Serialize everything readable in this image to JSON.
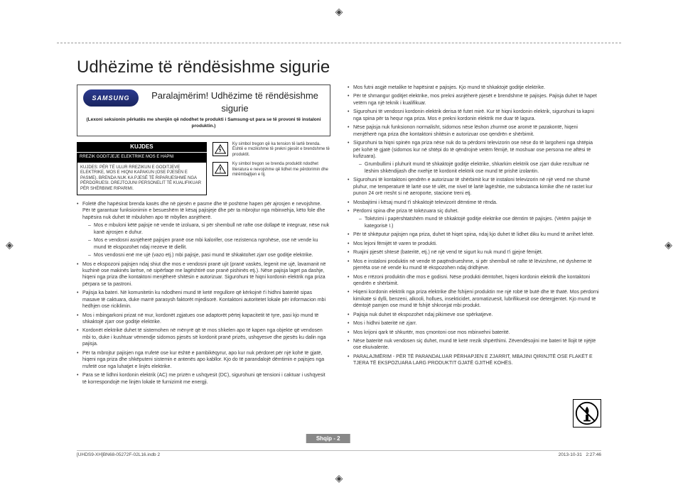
{
  "registration_mark": "◈",
  "title": "Udhëzime të rëndësishme sigurie",
  "logo_text": "SAMSUNG",
  "subhead": {
    "title": "Paralajmërim! Udhëzime të rëndësishme sigurie",
    "note": "(Lexoni seksionin përkatës me shenjën që ndodhet te produkti i Samsung-ut para se të provoni të instaloni produktin.)"
  },
  "caution": {
    "header": "KUJDES",
    "bar": "RREZIK GODITJEJE ELEKTRIKE MOS E HAPNI",
    "body": "KUJDES: PËR TË ULUR RREZIKUN E GODITJEVE ELEKTRIKE, MOS E HIQNI KAPAKUN (OSE PJESËN E PASME). BRENDA NUK KA PJESË TË RIPARUESHME NGA PËRDORUESI. DREJTOJUNI PERSONELIT TË KUALIFIKUAR PËR SHËRBIME RIPARIMI."
  },
  "symbols": [
    "Ky simbol tregon që ka tension të lartë brenda. Është e rrezikshme të prekni pjesët e brendshme të produktit.",
    "Ky simbol tregon se brenda produktit ndodhet literatura e nevojshme që lidhet me përdorimin dhe mirëmbajtjen e tij."
  ],
  "left_bullets": [
    {
      "text": "Foletë dhe hapësirat brenda kasës dhe në pjesën e pasme dhe të poshtme hapen për ajrosjen e nevojshme. Për të garantuar funksionimin e besueshëm të kësaj pajisjeje dhe për ta mbrojtur nga mbinxehja, këto fole dhe hapësira nuk duhet të mbulohen apo të mbyllen asnjëherë.",
      "sub": [
        "Mos e mbuloni këtë pajisje në vende të izoluara, si për shembull në rafte ose dollapë të integruar, nëse nuk kanë ajrosjen e duhur.",
        "Mos e vendosni asnjëherë pajisjen pranë ose mbi kalorifer, ose rezistenca ngrohëse, ose në vende ku mund të ekspozohet ndaj rrezeve të diellit.",
        "Mos vendosni enë me ujë (vazo etj.) mbi pajisje, pasi mund të shkaktohet zjarr ose goditje elektrike."
      ]
    },
    {
      "text": "Mos e ekspozoni pajisjen ndaj shiut dhe mos e vendosni pranë ujit (pranë vaskës, legenit me ujë, lavamanit në kuzhinë ose makinës larëse, në sipërfaqe me lagështirë ose pranë pishinës etj.). Nëse pajisja laget pa dashje, hiqeni nga priza dhe kontaktoni menjëherë shitësin e autorizuar. Sigurohuni të hiqni kordonin elektrik nga priza përpara se ta pastroni."
    },
    {
      "text": "Pajisja ka bateri. Në komunitetin ku ndodheni mund të ketë rregullore që kërkojnë t'i hidhni bateritë sipas masave të caktuara, duke marrë parasysh faktorët mjedisorë. Kontaktoni autoritetet lokale për informacion mbi hedhjen ose riciklimin."
    },
    {
      "text": "Mos i mbingarkoni prizat në mur, kordonët zgjatues ose adaptorët përtej kapacitetit të tyre, pasi kjo mund të shkaktojë zjarr ose goditje elektrike."
    },
    {
      "text": "Kordonët elektrikë duhet të sistemohen në mënyrë që të mos shkelen apo të kapen nga objekte që vendosen mbi to, duke i kushtuar vëmendje sidomos pjesës së kordonit pranë prizës, ushqyesve dhe pjesës ku dalin nga pajisja."
    },
    {
      "text": "Për ta mbrojtur pajisjen nga rrufetë ose kur është e pambikëqyrur, apo kur nuk përdoret për një kohë të gjatë, hiqeni nga priza dhe shkëputeni sistemin e antenës apo kabllor. Kjo do të parandalojë dëmtimin e pajisjes nga rrufetë ose nga luhatjet e linjës elektrike."
    },
    {
      "text": "Para se të lidhni kordonin elektrik (AC) me prizën e ushqyesit (DC), sigurohuni që tensioni i caktuar i ushqyesit të korrespondojë me linjën lokale të furnizimit me energji."
    }
  ],
  "right_bullets": [
    {
      "text": "Mos futni asgjë metalike te hapësirat e pajisjes. Kjo mund të shkaktojë goditje elektrike."
    },
    {
      "text": "Për të shmangur goditjet elektrike, mos prekni asnjëherë pjesët e brendshme të pajisjes. Pajisja duhet të hapet vetëm nga një teknik i kualifikuar."
    },
    {
      "text": "Sigurohuni të vendosni kordonin elektrik derisa të futet mirë. Kur të hiqni kordonin elektrik, sigurohuni ta kapni nga spina për ta hequr nga priza. Mos e prekni kordonin elektrik me duar të lagura."
    },
    {
      "text": "Nëse pajisja nuk funksionon normalisht, sidomos nëse lëshon zhurmë ose aromë të pazakontë, hiqeni menjëherë nga priza dhe kontaktoni shitësin e autorizuar ose qendrën e shërbimit."
    },
    {
      "text": "Sigurohuni ta hiqni spinën nga priza nëse nuk do ta përdorni televizorin ose nëse do të largoheni nga shtëpia për kohë të gjatë (sidomos kur në shtëpi do të qëndrojnë vetëm fëmijë, të moshuar ose persona me aftësi të kufizuara).",
      "sub": [
        "Grumbullimi i pluhurit mund të shkaktojë goditje elektrike, shkarkim elektrik ose zjarr duke rezultuar në lëshim shkëndijash dhe nxehje të kordonit elektrik ose mund të prishë izolantin."
      ]
    },
    {
      "text": "Sigurohuni të kontaktoni qendrën e autorizuar të shërbimit kur të instaloni televizorin në një vend me shumë pluhur, me temperaturë të lartë ose të ulët, me nivel të lartë lagështie, me substanca kimike dhe në rastet kur punon 24 orë rresht si në aeroporte, stacione treni etj."
    },
    {
      "text": "Mosbajtimi i kësaj mund t'i shkaktojë televizorit dëmtime të rënda."
    },
    {
      "text": "Përdorni spina dhe priza të tokëzuara siç duhet.",
      "sub": [
        "Tokëzimi i papërshtatshëm mund të shkaktojë goditje elektrike ose dëmtim të pajisjes. (Vetëm pajisje të kategorisë I.)"
      ]
    },
    {
      "text": "Për të shkëputur pajisjen nga priza, duhet të hiqet spina, ndaj kjo duhet të lidhet diku ku mund të arrihet lehtë."
    },
    {
      "text": "Mos lejoni fëmijët të varen te produkti."
    },
    {
      "text": "Ruajini pjesët shtesë (bateritë, etj.) në një vend të sigurt ku nuk mund t'i gjejnë fëmijët."
    },
    {
      "text": "Mos e instaloni produktin në vende të paqëndrueshme, si për shembull në rafte të lëvizshme, në dysheme të pjerrëta ose në vende ku mund të ekspozohen ndaj dridhjeve."
    },
    {
      "text": "Mos e rrëzoni produktin dhe mos e godisni. Nëse produkti dëmtohet, hiqeni kordonin elektrik dhe kontaktoni qendrën e shërbimit."
    },
    {
      "text": "Hiqeni kordonin elektrik nga priza elektrike dhe fshijeni produktin me një robë të butë dhe të thatë. Mos përdorni kimikate si dylli, benzeni, alkooli, hollues, insekticidet, aromatizuesit, lubrifikuesit ose detergjentet. Kjo mund të dëmtojë pamjen ose mund të fshijë shkronjat mbi produkt."
    },
    {
      "text": "Pajisja nuk duhet të ekspozohet ndaj pikimeve ose spërkatjeve."
    },
    {
      "text": "Mos i hidhni bateritë në zjarr."
    },
    {
      "text": "Mos krijoni qark të shkurtër, mos çmontoni ose mos mbinxehni bateritë."
    },
    {
      "text": "Nëse bateritë nuk vendosen siç duhet, mund të ketë rrezik shpërthimi. Zëvendësojini me bateri të llojit të njëjtë ose ekuivalente."
    },
    {
      "text": "PARALAJMËRIM - PËR TË PARANDALUAR PËRHAPJEN E ZJARRIT, MBAJINI QIRINJTË OSE FLAKËT E TJERA TË EKSPOZUARA LARG PRODUKTIT GJATË GJITHË KOHËS."
    }
  ],
  "page_label": "Shqip - 2",
  "footer": {
    "left": "[UHDS9-XH]BN68-05272F-02L16.indb   2",
    "right_date": "2013-10-31",
    "right_time": "2:27:46"
  },
  "colors": {
    "title": "#222222",
    "text": "#333333",
    "page_tab_bg": "#888888",
    "logo_bg": "#1f2d7a"
  }
}
